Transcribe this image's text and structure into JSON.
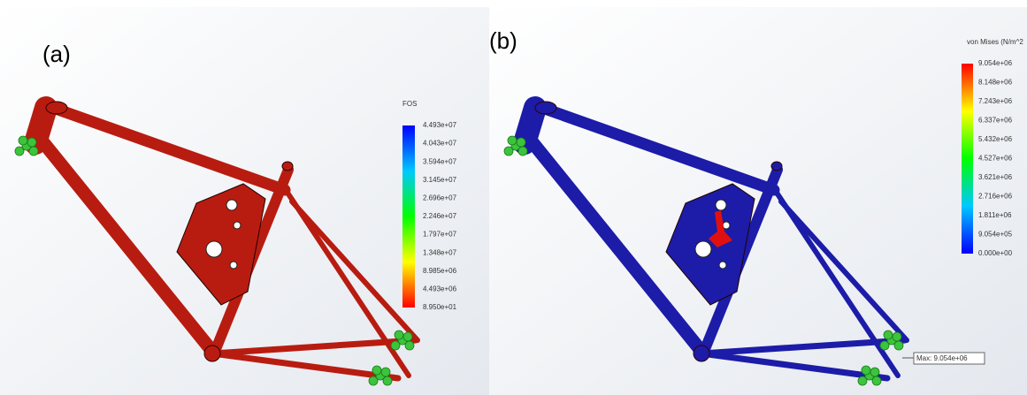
{
  "panels": [
    {
      "label": "(a)",
      "legend": {
        "title": "FOS",
        "ticks": [
          "4.493e+07",
          "4.043e+07",
          "3.594e+07",
          "3.145e+07",
          "2.696e+07",
          "2.246e+07",
          "1.797e+07",
          "1.348e+07",
          "8.985e+06",
          "4.493e+06",
          "8.950e+01"
        ]
      }
    },
    {
      "label": "(b)",
      "legend": {
        "title": "von Mises (N/m^2",
        "ticks": [
          "9.054e+06",
          "8.148e+06",
          "7.243e+06",
          "6.337e+06",
          "5.432e+06",
          "4.527e+06",
          "3.621e+06",
          "2.716e+06",
          "1.811e+06",
          "9.054e+05",
          "0.000e+00"
        ]
      },
      "annotation": "Max: 9.054e+06"
    }
  ]
}
